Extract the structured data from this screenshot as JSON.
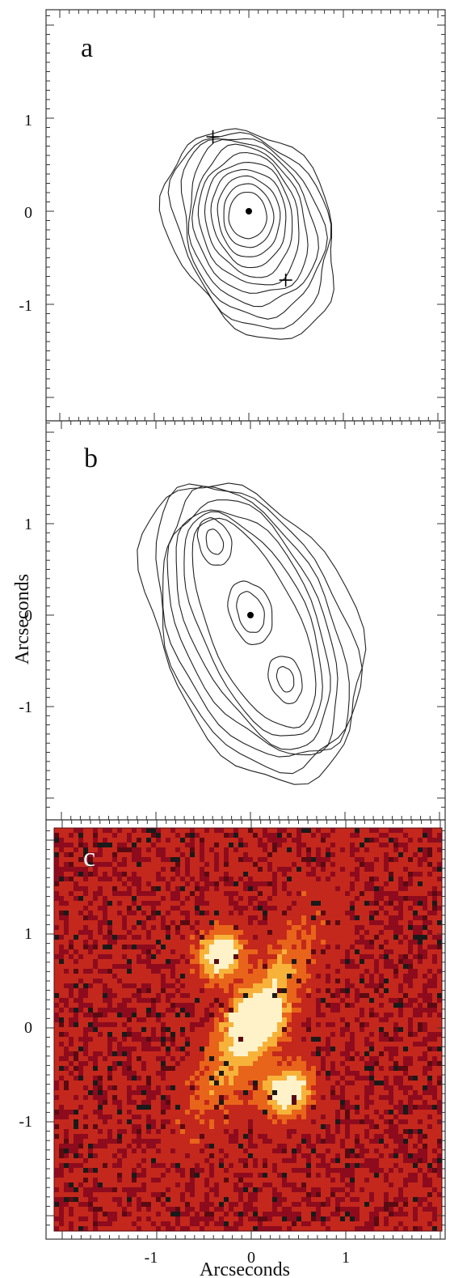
{
  "chart_data": [
    {
      "type": "contour",
      "panel": "a",
      "xlim": [
        -2,
        2
      ],
      "ylim": [
        -2.1,
        2.1
      ],
      "yticks": [
        "1",
        "0",
        "-1"
      ],
      "centroid": [
        0,
        0
      ],
      "markers": [
        {
          "symbol": "+",
          "x": -0.38,
          "y": 0.8
        },
        {
          "symbol": "+",
          "x": 0.39,
          "y": -0.74
        }
      ],
      "contour_levels": 11
    },
    {
      "type": "contour",
      "panel": "b",
      "xlim": [
        -2,
        2
      ],
      "ylim": [
        -2.1,
        2.1
      ],
      "yticks": [
        "1",
        "0",
        "-1"
      ],
      "ylabel": "Arcseconds",
      "centroid": [
        0,
        0
      ],
      "peaks": [
        {
          "x": -0.38,
          "y": 0.8
        },
        {
          "x": 0.0,
          "y": 0.03
        },
        {
          "x": 0.37,
          "y": -0.7
        }
      ],
      "contour_levels": 11
    },
    {
      "type": "heatmap",
      "panel": "c",
      "xlim": [
        -2,
        2
      ],
      "ylim": [
        -2.1,
        2.1
      ],
      "yticks": [
        "1",
        "0",
        "-1"
      ],
      "xticks": [
        "-1",
        "0",
        "1"
      ],
      "xlabel": "Arcseconds",
      "colormap": [
        "#8e0b1e",
        "#c4281c",
        "#e8641a",
        "#f7b23a",
        "#fff2c8"
      ],
      "sources": [
        {
          "x": -0.32,
          "y": 0.78
        },
        {
          "x": 0.05,
          "y": 0.05
        },
        {
          "x": 0.38,
          "y": -0.68
        }
      ]
    }
  ]
}
